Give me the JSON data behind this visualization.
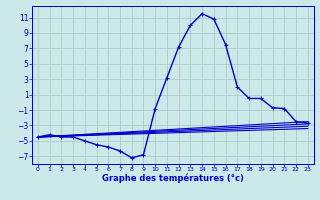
{
  "bg_color": "#cce8e8",
  "grid_color": "#aacccc",
  "line_color": "#0000cc",
  "xlim": [
    -0.5,
    23.5
  ],
  "ylim": [
    -8,
    12.5
  ],
  "xticks": [
    0,
    1,
    2,
    3,
    4,
    5,
    6,
    7,
    8,
    9,
    10,
    11,
    12,
    13,
    14,
    15,
    16,
    17,
    18,
    19,
    20,
    21,
    22,
    23
  ],
  "yticks": [
    -7,
    -5,
    -3,
    -1,
    1,
    3,
    5,
    7,
    9,
    11
  ],
  "xlabel": "Graphe des températures (°c)",
  "main_x": [
    0,
    1,
    2,
    3,
    4,
    5,
    6,
    7,
    8,
    9,
    10,
    11,
    12,
    13,
    14,
    15,
    16,
    17,
    18,
    19,
    20,
    21,
    22,
    23
  ],
  "main_y": [
    -4.5,
    -4.2,
    -4.5,
    -4.5,
    -5.0,
    -5.5,
    -5.8,
    -6.3,
    -7.2,
    -6.8,
    -0.8,
    3.2,
    7.2,
    10.0,
    11.5,
    10.8,
    7.5,
    2.0,
    0.5,
    0.5,
    -0.7,
    -0.8,
    -2.5,
    -2.7
  ],
  "diag_lines": [
    {
      "x": [
        0,
        23
      ],
      "y": [
        -4.5,
        -2.5
      ]
    },
    {
      "x": [
        0,
        23
      ],
      "y": [
        -4.5,
        -2.8
      ]
    },
    {
      "x": [
        0,
        23
      ],
      "y": [
        -4.5,
        -3.1
      ]
    },
    {
      "x": [
        0,
        23
      ],
      "y": [
        -4.5,
        -3.4
      ]
    }
  ]
}
